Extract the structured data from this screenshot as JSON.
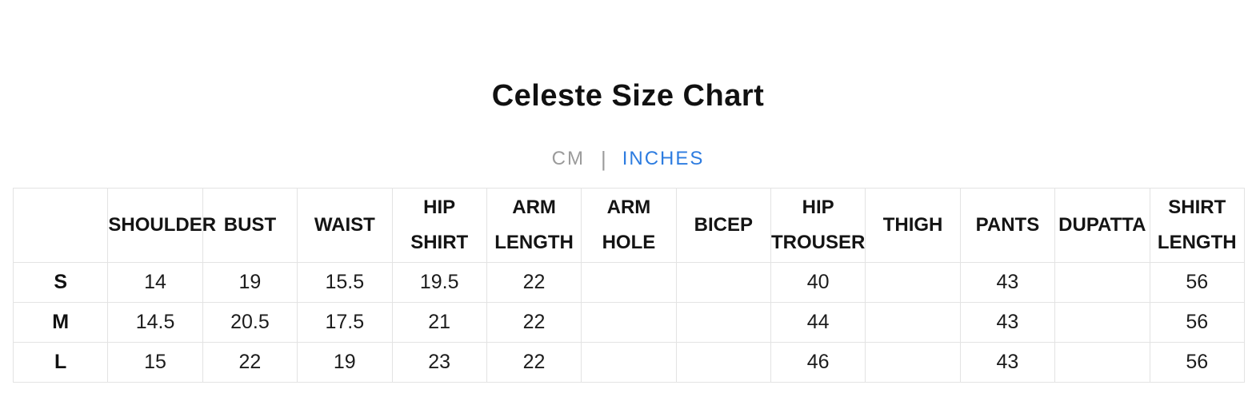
{
  "page": {
    "title": "Celeste Size Chart"
  },
  "unit_toggle": {
    "cm_label": "CM",
    "divider": "|",
    "inches_label": "INCHES",
    "active_unit": "INCHES",
    "active_color": "#2d7ce0",
    "inactive_color": "#9b9b9b"
  },
  "table": {
    "border_color": "#e3e3e3",
    "columns": [
      "",
      "SHOULDER",
      "BUST",
      "WAIST",
      "HIP SHIRT",
      "ARM LENGTH",
      "ARM HOLE",
      "BICEP",
      "HIP TROUSER",
      "THIGH",
      "PANTS",
      "DUPATTA",
      "SHIRT LENGTH"
    ],
    "rows": [
      {
        "size": "S",
        "values": [
          "14",
          "19",
          "15.5",
          "19.5",
          "22",
          "",
          "",
          "40",
          "",
          "43",
          "",
          "56"
        ]
      },
      {
        "size": "M",
        "values": [
          "14.5",
          "20.5",
          "17.5",
          "21",
          "22",
          "",
          "",
          "44",
          "",
          "43",
          "",
          "56"
        ]
      },
      {
        "size": "L",
        "values": [
          "15",
          "22",
          "19",
          "23",
          "22",
          "",
          "",
          "46",
          "",
          "43",
          "",
          "56"
        ]
      }
    ]
  }
}
